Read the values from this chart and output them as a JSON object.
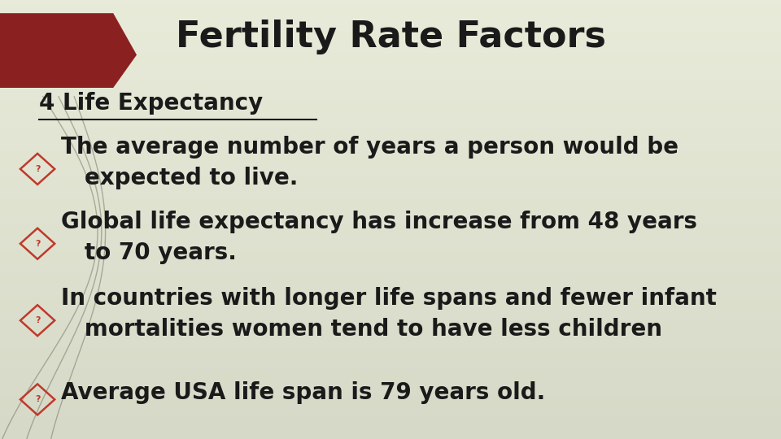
{
  "title": "Fertility Rate Factors",
  "title_fontsize": 32,
  "title_fontweight": "bold",
  "title_color": "#1a1a1a",
  "subtitle": "4 Life Expectancy",
  "subtitle_fontsize": 20,
  "subtitle_fontweight": "bold",
  "text_color": "#1a1a1a",
  "text_fontsize": 20,
  "text_fontweight": "bold",
  "bullets": [
    "The average number of years a person would be\n   expected to live.",
    "Global life expectancy has increase from 48 years\n   to 70 years.",
    "In countries with longer life spans and fewer infant\n   mortalities women tend to have less children",
    "Average USA life span is 79 years old."
  ],
  "red_arrow_color": "#8B2020",
  "curve_color": "#7a7a6a",
  "bg_color_light": [
    0.91,
    0.92,
    0.85
  ],
  "bg_color_dark": [
    0.84,
    0.85,
    0.78
  ],
  "fig_width": 9.6,
  "fig_height": 5.4,
  "dpi": 100
}
